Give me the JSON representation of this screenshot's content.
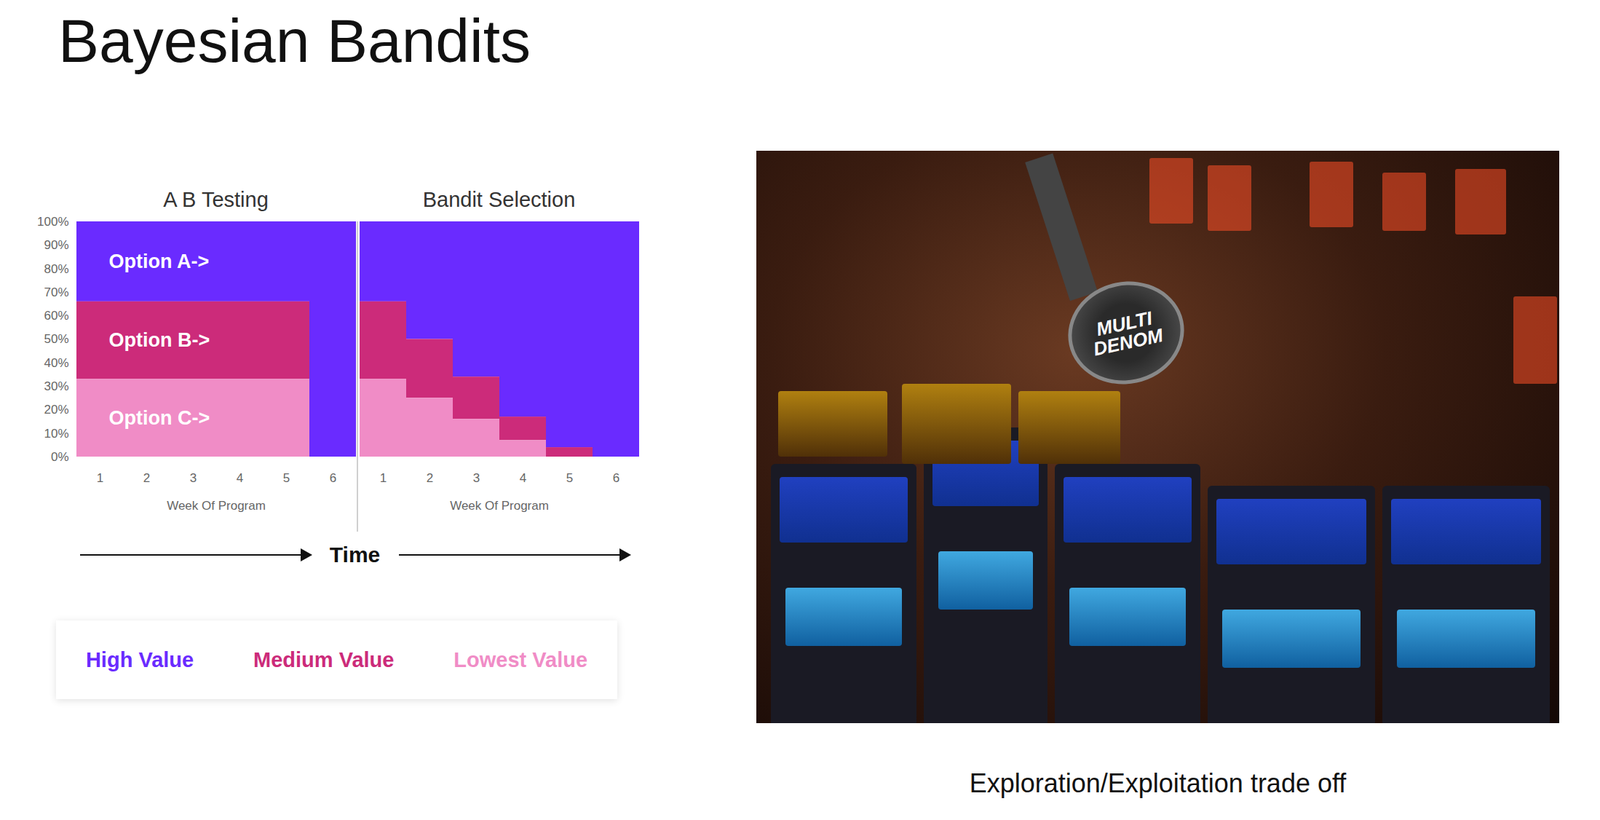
{
  "title": "Bayesian Bandits",
  "caption": "Exploration/Exploitation trade off",
  "time_label": "Time",
  "legend_items": [
    {
      "label": "High Value",
      "color": "#6a2bff"
    },
    {
      "label": "Medium Value",
      "color": "#cc2b7a"
    },
    {
      "label": "Lowest Value",
      "color": "#f08cc6"
    }
  ],
  "photo_sign": "MULTI DENOM",
  "chart_data": [
    {
      "type": "bar",
      "title": "A B Testing",
      "stacked": true,
      "x_label": "Week Of Program",
      "categories": [
        "1",
        "2",
        "3",
        "4",
        "5",
        "6"
      ],
      "ylim": [
        0,
        100
      ],
      "yticks": [
        {
          "value": 0,
          "label": "0%"
        },
        {
          "value": 10,
          "label": "10%"
        },
        {
          "value": 20,
          "label": "20%"
        },
        {
          "value": 30,
          "label": "30%"
        },
        {
          "value": 40,
          "label": "40%"
        },
        {
          "value": 50,
          "label": "50%"
        },
        {
          "value": 60,
          "label": "60%"
        },
        {
          "value": 70,
          "label": "70%"
        },
        {
          "value": 80,
          "label": "80%"
        },
        {
          "value": 90,
          "label": "90%"
        },
        {
          "value": 100,
          "label": "100%"
        }
      ],
      "series": [
        {
          "name": "Option A->",
          "color": "#6a2bff",
          "values": [
            34,
            34,
            34,
            34,
            34,
            100
          ]
        },
        {
          "name": "Option B->",
          "color": "#cc2b7a",
          "values": [
            33,
            33,
            33,
            33,
            33,
            0
          ]
        },
        {
          "name": "Option C->",
          "color": "#f08cc6",
          "values": [
            33,
            33,
            33,
            33,
            33,
            0
          ]
        }
      ]
    },
    {
      "type": "bar",
      "title": "Bandit Selection",
      "stacked": true,
      "tick_labels": "x",
      "x_label": "Week Of Program",
      "categories": [
        "1",
        "2",
        "3",
        "4",
        "5",
        "6"
      ],
      "ylim": [
        0,
        100
      ],
      "series": [
        {
          "color": "#6a2bff",
          "values": [
            34,
            50,
            66,
            83,
            96,
            100
          ]
        },
        {
          "color": "#cc2b7a",
          "values": [
            33,
            25,
            18,
            10,
            4,
            0
          ]
        },
        {
          "color": "#f08cc6",
          "values": [
            33,
            25,
            16,
            7,
            0,
            0
          ]
        }
      ]
    }
  ]
}
